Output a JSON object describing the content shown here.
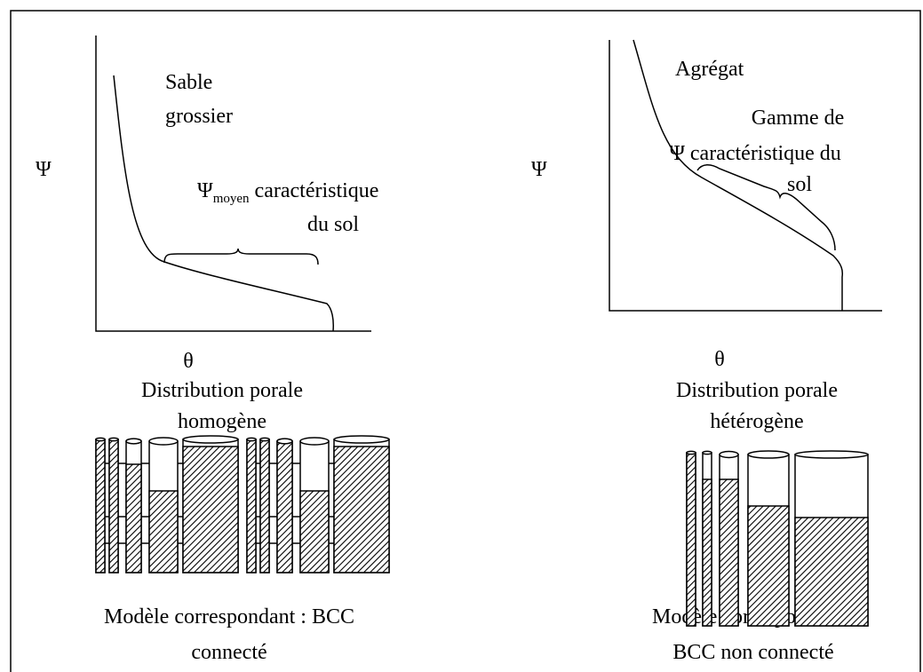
{
  "left": {
    "y_label": "Ψ",
    "x_label": "θ",
    "soil": [
      "Sable",
      "grossier"
    ],
    "annotation": {
      "symbol": "Ψ",
      "subscript": "moyen",
      "text": "caractéristique",
      "line2": "du sol"
    },
    "distribution": [
      "Distribution porale",
      "homogène"
    ],
    "model": [
      "Modèle correspondant : BCC",
      "connecté"
    ]
  },
  "right": {
    "y_label": "Ψ",
    "x_label": "θ",
    "soil": [
      "Agrégat"
    ],
    "annotation": [
      "Gamme de",
      "Ψ caractéristique du",
      "sol"
    ],
    "distribution": [
      "Distribution porale",
      "hétérogène"
    ],
    "model": [
      "Modèle correspondant :",
      "BCC non connecté"
    ]
  }
}
